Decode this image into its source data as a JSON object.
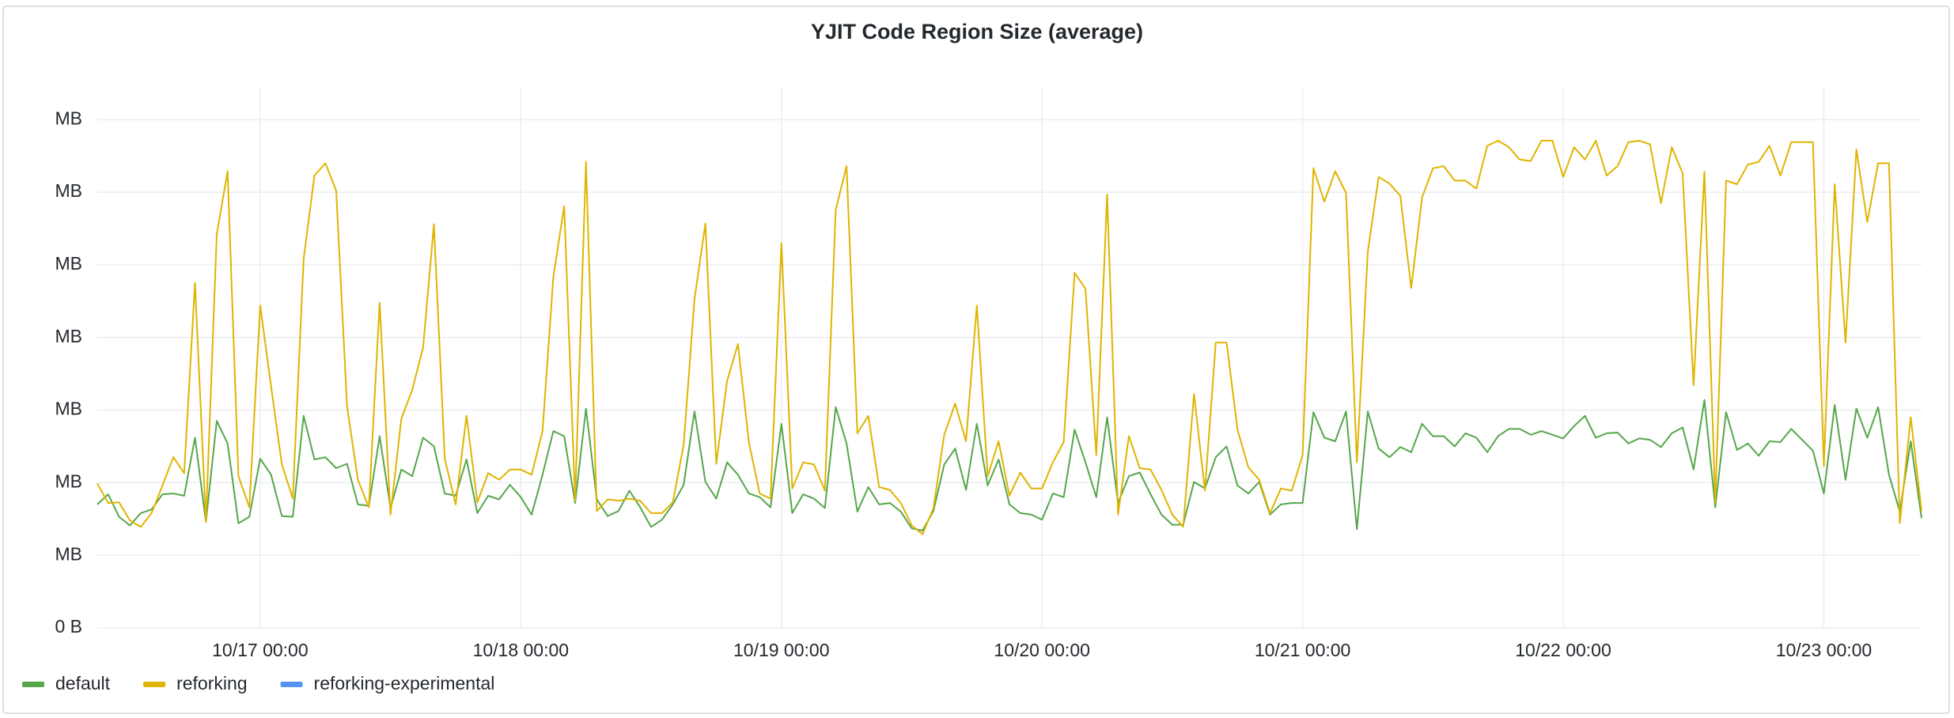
{
  "chart_data": {
    "type": "line",
    "title": "YJIT Code Region Size (average)",
    "x": [
      "10/16 09:00",
      "10/16 10:00",
      "10/16 11:00",
      "10/16 12:00",
      "10/16 13:00",
      "10/16 14:00",
      "10/16 15:00",
      "10/16 16:00",
      "10/16 17:00",
      "10/16 18:00",
      "10/16 19:00",
      "10/16 20:00",
      "10/16 21:00",
      "10/16 22:00",
      "10/16 23:00",
      "10/17 00:00",
      "10/17 01:00",
      "10/17 02:00",
      "10/17 03:00",
      "10/17 04:00",
      "10/17 05:00",
      "10/17 06:00",
      "10/17 07:00",
      "10/17 08:00",
      "10/17 09:00",
      "10/17 10:00",
      "10/17 11:00",
      "10/17 12:00",
      "10/17 13:00",
      "10/17 14:00",
      "10/17 15:00",
      "10/17 16:00",
      "10/17 17:00",
      "10/17 18:00",
      "10/17 19:00",
      "10/17 20:00",
      "10/17 21:00",
      "10/17 22:00",
      "10/17 23:00",
      "10/18 00:00",
      "10/18 01:00",
      "10/18 02:00",
      "10/18 03:00",
      "10/18 04:00",
      "10/18 05:00",
      "10/18 06:00",
      "10/18 07:00",
      "10/18 08:00",
      "10/18 09:00",
      "10/18 10:00",
      "10/18 11:00",
      "10/18 12:00",
      "10/18 13:00",
      "10/18 14:00",
      "10/18 15:00",
      "10/18 16:00",
      "10/18 17:00",
      "10/18 18:00",
      "10/18 19:00",
      "10/18 20:00",
      "10/18 21:00",
      "10/18 22:00",
      "10/18 23:00",
      "10/19 00:00",
      "10/19 01:00",
      "10/19 02:00",
      "10/19 03:00",
      "10/19 04:00",
      "10/19 05:00",
      "10/19 06:00",
      "10/19 07:00",
      "10/19 08:00",
      "10/19 09:00",
      "10/19 10:00",
      "10/19 11:00",
      "10/19 12:00",
      "10/19 13:00",
      "10/19 14:00",
      "10/19 15:00",
      "10/19 16:00",
      "10/19 17:00",
      "10/19 18:00",
      "10/19 19:00",
      "10/19 20:00",
      "10/19 21:00",
      "10/19 22:00",
      "10/19 23:00",
      "10/20 00:00",
      "10/20 01:00",
      "10/20 02:00",
      "10/20 03:00",
      "10/20 04:00",
      "10/20 05:00",
      "10/20 06:00",
      "10/20 07:00",
      "10/20 08:00",
      "10/20 09:00",
      "10/20 10:00",
      "10/20 11:00",
      "10/20 12:00",
      "10/20 13:00",
      "10/20 14:00",
      "10/20 15:00",
      "10/20 16:00",
      "10/20 17:00",
      "10/20 18:00",
      "10/20 19:00",
      "10/20 20:00",
      "10/20 21:00",
      "10/20 22:00",
      "10/20 23:00",
      "10/21 00:00",
      "10/21 01:00",
      "10/21 02:00",
      "10/21 03:00",
      "10/21 04:00",
      "10/21 05:00",
      "10/21 06:00",
      "10/21 07:00",
      "10/21 08:00",
      "10/21 09:00",
      "10/21 10:00",
      "10/21 11:00",
      "10/21 12:00",
      "10/21 13:00",
      "10/21 14:00",
      "10/21 15:00",
      "10/21 16:00",
      "10/21 17:00",
      "10/21 18:00",
      "10/21 19:00",
      "10/21 20:00",
      "10/21 21:00",
      "10/21 22:00",
      "10/21 23:00",
      "10/22 00:00",
      "10/22 01:00",
      "10/22 02:00",
      "10/22 03:00",
      "10/22 04:00",
      "10/22 05:00",
      "10/22 06:00",
      "10/22 07:00",
      "10/22 08:00",
      "10/22 09:00",
      "10/22 10:00",
      "10/22 11:00",
      "10/22 12:00",
      "10/22 13:00",
      "10/22 14:00",
      "10/22 15:00",
      "10/22 16:00",
      "10/22 17:00",
      "10/22 18:00",
      "10/22 19:00",
      "10/22 20:00",
      "10/22 21:00",
      "10/22 22:00",
      "10/22 23:00",
      "10/23 00:00",
      "10/23 01:00",
      "10/23 02:00",
      "10/23 03:00",
      "10/23 04:00",
      "10/23 05:00",
      "10/23 06:00",
      "10/23 07:00",
      "10/23 08:00",
      "10/23 09:00"
    ],
    "series": [
      {
        "name": "default",
        "color": "#56a64b",
        "values": [
          1.7,
          1.84,
          1.53,
          1.41,
          1.58,
          1.63,
          1.84,
          1.85,
          1.82,
          2.62,
          1.46,
          2.85,
          2.54,
          1.44,
          1.53,
          2.33,
          2.11,
          1.54,
          1.53,
          2.92,
          2.32,
          2.35,
          2.2,
          2.26,
          1.7,
          1.68,
          2.64,
          1.65,
          2.18,
          2.09,
          2.62,
          2.5,
          1.85,
          1.82,
          2.32,
          1.58,
          1.82,
          1.77,
          1.97,
          1.8,
          1.56,
          2.11,
          2.71,
          2.64,
          1.72,
          3.02,
          1.77,
          1.54,
          1.61,
          1.89,
          1.66,
          1.39,
          1.49,
          1.7,
          1.97,
          2.98,
          2.01,
          1.78,
          2.28,
          2.11,
          1.85,
          1.8,
          1.66,
          2.81,
          1.58,
          1.84,
          1.78,
          1.65,
          3.04,
          2.54,
          1.6,
          1.94,
          1.7,
          1.72,
          1.6,
          1.37,
          1.34,
          1.61,
          2.25,
          2.47,
          1.9,
          2.81,
          1.96,
          2.32,
          1.7,
          1.58,
          1.56,
          1.49,
          1.85,
          1.8,
          2.73,
          2.28,
          1.8,
          2.9,
          1.72,
          2.09,
          2.14,
          1.84,
          1.56,
          1.42,
          1.42,
          2.01,
          1.92,
          2.35,
          2.5,
          1.96,
          1.85,
          2.01,
          1.56,
          1.7,
          1.72,
          1.72,
          2.97,
          2.62,
          2.57,
          2.98,
          1.36,
          2.98,
          2.47,
          2.35,
          2.49,
          2.42,
          2.81,
          2.64,
          2.64,
          2.5,
          2.68,
          2.62,
          2.42,
          2.64,
          2.74,
          2.74,
          2.66,
          2.71,
          2.66,
          2.61,
          2.78,
          2.92,
          2.62,
          2.68,
          2.69,
          2.54,
          2.61,
          2.59,
          2.49,
          2.68,
          2.76,
          2.18,
          3.14,
          1.66,
          2.97,
          2.45,
          2.54,
          2.37,
          2.57,
          2.56,
          2.74,
          2.59,
          2.44,
          1.85,
          3.07,
          2.04,
          3.02,
          2.62,
          3.04,
          2.11,
          1.6,
          2.57,
          1.51
        ]
      },
      {
        "name": "reforking",
        "color": "#e0b400",
        "values": [
          1.99,
          1.72,
          1.73,
          1.48,
          1.39,
          1.58,
          1.96,
          2.35,
          2.13,
          4.75,
          1.46,
          5.42,
          6.29,
          2.09,
          1.66,
          4.44,
          3.33,
          2.25,
          1.78,
          5.08,
          6.23,
          6.4,
          6.02,
          3.05,
          2.04,
          1.66,
          4.48,
          1.56,
          2.88,
          3.28,
          3.86,
          5.56,
          2.33,
          1.7,
          2.92,
          1.73,
          2.13,
          2.04,
          2.18,
          2.18,
          2.11,
          2.71,
          4.84,
          5.81,
          1.75,
          6.42,
          1.61,
          1.77,
          1.75,
          1.78,
          1.75,
          1.58,
          1.58,
          1.73,
          2.52,
          4.53,
          5.57,
          2.26,
          3.4,
          3.91,
          2.56,
          1.85,
          1.78,
          5.3,
          1.92,
          2.28,
          2.25,
          1.89,
          5.76,
          6.36,
          2.68,
          2.92,
          1.94,
          1.9,
          1.72,
          1.41,
          1.29,
          1.65,
          2.66,
          3.09,
          2.57,
          4.44,
          2.09,
          2.57,
          1.82,
          2.14,
          1.92,
          1.92,
          2.28,
          2.56,
          4.89,
          4.67,
          2.38,
          5.97,
          1.56,
          2.64,
          2.2,
          2.18,
          1.9,
          1.56,
          1.39,
          3.22,
          1.89,
          3.93,
          3.93,
          2.73,
          2.21,
          2.04,
          1.58,
          1.92,
          1.89,
          2.38,
          6.33,
          5.87,
          6.29,
          5.99,
          2.28,
          5.18,
          6.21,
          6.12,
          5.95,
          4.68,
          5.93,
          6.33,
          6.36,
          6.16,
          6.16,
          6.05,
          6.64,
          6.71,
          6.62,
          6.45,
          6.43,
          6.71,
          6.71,
          6.21,
          6.62,
          6.45,
          6.71,
          6.23,
          6.36,
          6.69,
          6.71,
          6.66,
          5.85,
          6.62,
          6.26,
          3.34,
          6.28,
          1.73,
          6.16,
          6.11,
          6.38,
          6.42,
          6.64,
          6.23,
          6.69,
          6.69,
          6.69,
          2.23,
          6.11,
          3.93,
          6.59,
          5.59,
          6.4,
          6.4,
          1.44,
          2.9,
          1.61
        ]
      },
      {
        "name": "reforking-experimental",
        "color": "#5794f2",
        "values": [
          null,
          null,
          null,
          null,
          null,
          null,
          null,
          null,
          null,
          null,
          null,
          null,
          null,
          null,
          null,
          null,
          null,
          null,
          null,
          null,
          null,
          null,
          null,
          null,
          null,
          null,
          null,
          null,
          null,
          null,
          null,
          null,
          null,
          null,
          null,
          null,
          null,
          null,
          null,
          null,
          null,
          null,
          null,
          null,
          null,
          null,
          null,
          null,
          null,
          null,
          null,
          null,
          null,
          null,
          null,
          null,
          null,
          null,
          null,
          null,
          null,
          null,
          null,
          null,
          null,
          null,
          null,
          null,
          null,
          null,
          null,
          null,
          null,
          null,
          null,
          null,
          null,
          null,
          null,
          null,
          null,
          null,
          null,
          null,
          null,
          null,
          null,
          null,
          null,
          null,
          null,
          null,
          null,
          null,
          null,
          null,
          null,
          null,
          null,
          null,
          null,
          null,
          null,
          null,
          null,
          null,
          null,
          null,
          null,
          null,
          null,
          null,
          null,
          null,
          null,
          null,
          null,
          null,
          null,
          null,
          null,
          null,
          null,
          null,
          null,
          null,
          null,
          null,
          null,
          null,
          null,
          null,
          null,
          null,
          null,
          null,
          null,
          null,
          null,
          null,
          null,
          null,
          null,
          null,
          null,
          null,
          null,
          null,
          null,
          null,
          null,
          null,
          null,
          null,
          null,
          null,
          null,
          null,
          null,
          null,
          null,
          null,
          null,
          null,
          null,
          null,
          null,
          null,
          null
        ]
      }
    ],
    "xlim": [
      "10/16 09:00",
      "10/23 09:00"
    ],
    "xticks": [
      "10/17 00:00",
      "10/18 00:00",
      "10/19 00:00",
      "10/20 00:00",
      "10/21 00:00",
      "10/22 00:00",
      "10/23 00:00"
    ],
    "ylim": [
      0,
      7.45
    ],
    "yticks": [
      {
        "value": 0,
        "label": "0 B"
      },
      {
        "value": 1,
        "label": "MB"
      },
      {
        "value": 2,
        "label": "MB"
      },
      {
        "value": 3,
        "label": "MB"
      },
      {
        "value": 4,
        "label": "MB"
      },
      {
        "value": 5,
        "label": "MB"
      },
      {
        "value": 6,
        "label": "MB"
      },
      {
        "value": 7,
        "label": "MB"
      }
    ],
    "grid": true,
    "legend": "bottom-left"
  }
}
